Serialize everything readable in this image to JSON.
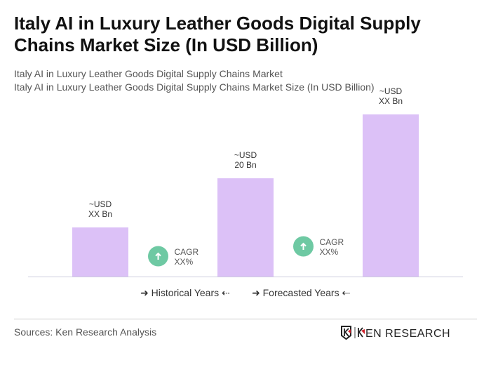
{
  "title": "Italy AI in Luxury Leather Goods Digital Supply Chains Market Size (In USD Billion)",
  "subtitle_1": "Italy AI in Luxury Leather Goods Digital Supply Chains Market",
  "subtitle_2": "Italy AI in Luxury Leather Goods Digital Supply Chains Market Size (In USD Billion)",
  "chart_data": {
    "type": "bar",
    "title": "Italy AI in Luxury Leather Goods Digital Supply Chains Market Size (In USD Billion)",
    "values": [
      10,
      20,
      33
    ],
    "data_labels": [
      [
        "~USD",
        "XX Bn"
      ],
      [
        "~USD",
        "20 Bn"
      ],
      [
        "~USD",
        "XX Bn"
      ]
    ],
    "bar_color": "#dcc1f7",
    "annotations": [
      {
        "line1": "CAGR",
        "line2": "XX%",
        "between": [
          0,
          1
        ]
      },
      {
        "line1": "CAGR",
        "line2": "XX%",
        "between": [
          1,
          2
        ]
      }
    ],
    "cagr_color": "#6ec9a3",
    "grid": false,
    "legend": {
      "position": "bottom",
      "items": [
        "Historical Years",
        "Forecasted Years"
      ]
    }
  },
  "source": "Sources: Ken Research Analysis",
  "logo_text": "KEN RESEARCH"
}
